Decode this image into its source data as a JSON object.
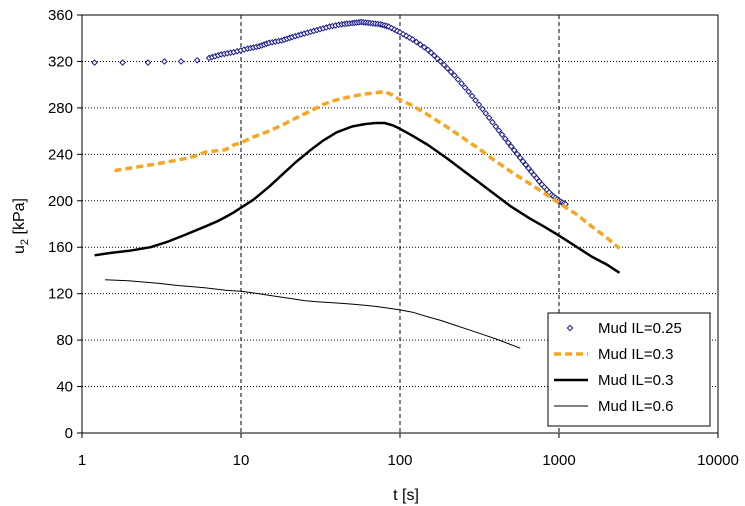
{
  "chart_data": {
    "type": "line",
    "xlabel": "t [s]",
    "ylabel_main": "u",
    "ylabel_sub": "2",
    "ylabel_tail": " [kPa]",
    "xscale": "log",
    "xlim": [
      1,
      10000
    ],
    "ylim": [
      0,
      360
    ],
    "x_ticks": [
      {
        "value": 1,
        "label": "1"
      },
      {
        "value": 10,
        "label": "10"
      },
      {
        "value": 100,
        "label": "100"
      },
      {
        "value": 1000,
        "label": "1000"
      },
      {
        "value": 10000,
        "label": "10000"
      }
    ],
    "y_ticks": [
      {
        "value": 0,
        "label": "0"
      },
      {
        "value": 40,
        "label": "40"
      },
      {
        "value": 80,
        "label": "80"
      },
      {
        "value": 120,
        "label": "120"
      },
      {
        "value": 160,
        "label": "160"
      },
      {
        "value": 200,
        "label": "200"
      },
      {
        "value": 240,
        "label": "240"
      },
      {
        "value": 280,
        "label": "280"
      },
      {
        "value": 320,
        "label": "320"
      },
      {
        "value": 360,
        "label": "360"
      }
    ],
    "grid": {
      "x_major": "dotted",
      "y_major": "dotted",
      "x_decades": "dashed"
    },
    "legend_position": "bottom-right",
    "series": [
      {
        "name": "Mud IL=0.25",
        "style": "markers",
        "marker": "diamond-open",
        "color": "#1a1a8c",
        "points": [
          [
            1.2,
            319
          ],
          [
            1.8,
            319
          ],
          [
            2.6,
            319
          ],
          [
            3.3,
            320
          ],
          [
            4.2,
            320
          ],
          [
            5.3,
            321
          ],
          [
            6.3,
            323
          ],
          [
            7.5,
            326
          ],
          [
            9,
            328
          ],
          [
            11,
            331
          ],
          [
            13,
            333
          ],
          [
            15,
            336
          ],
          [
            18,
            338
          ],
          [
            21,
            341
          ],
          [
            25,
            344
          ],
          [
            30,
            347
          ],
          [
            36,
            350
          ],
          [
            43,
            352
          ],
          [
            50,
            353
          ],
          [
            57,
            354
          ],
          [
            65,
            353
          ],
          [
            75,
            352
          ],
          [
            85,
            350
          ],
          [
            100,
            345
          ],
          [
            120,
            339
          ],
          [
            150,
            330
          ],
          [
            180,
            320
          ],
          [
            220,
            308
          ],
          [
            270,
            294
          ],
          [
            330,
            279
          ],
          [
            400,
            264
          ],
          [
            480,
            250
          ],
          [
            570,
            237
          ],
          [
            670,
            225
          ],
          [
            780,
            214
          ],
          [
            900,
            205
          ],
          [
            1000,
            200
          ],
          [
            1100,
            197
          ]
        ]
      },
      {
        "name": "Mud IL=0.3",
        "style": "dashed-line",
        "color": "#f5a623",
        "points": [
          [
            1.6,
            226
          ],
          [
            2.2,
            229
          ],
          [
            3,
            232
          ],
          [
            4,
            235
          ],
          [
            5,
            238
          ],
          [
            6,
            242
          ],
          [
            7,
            243
          ],
          [
            8,
            244
          ],
          [
            9,
            248
          ],
          [
            10,
            250
          ],
          [
            12,
            255
          ],
          [
            15,
            260
          ],
          [
            18,
            265
          ],
          [
            22,
            271
          ],
          [
            27,
            277
          ],
          [
            33,
            283
          ],
          [
            40,
            287
          ],
          [
            50,
            290
          ],
          [
            60,
            292
          ],
          [
            70,
            293
          ],
          [
            80,
            294
          ],
          [
            90,
            291
          ],
          [
            100,
            287
          ],
          [
            120,
            282
          ],
          [
            150,
            274
          ],
          [
            200,
            263
          ],
          [
            250,
            254
          ],
          [
            320,
            244
          ],
          [
            400,
            234
          ],
          [
            500,
            225
          ],
          [
            650,
            215
          ],
          [
            800,
            207
          ],
          [
            1000,
            198
          ],
          [
            1300,
            188
          ],
          [
            1600,
            178
          ],
          [
            2000,
            168
          ],
          [
            2400,
            159
          ]
        ]
      },
      {
        "name": "Mud IL=0.3",
        "style": "thick-line",
        "color": "#000000",
        "points": [
          [
            1.2,
            153
          ],
          [
            1.5,
            155
          ],
          [
            2,
            157
          ],
          [
            2.7,
            160
          ],
          [
            3.5,
            165
          ],
          [
            4.5,
            171
          ],
          [
            6,
            178
          ],
          [
            7,
            182
          ],
          [
            8,
            186
          ],
          [
            9,
            190
          ],
          [
            10,
            194
          ],
          [
            12,
            201
          ],
          [
            15,
            212
          ],
          [
            18,
            222
          ],
          [
            22,
            233
          ],
          [
            27,
            243
          ],
          [
            33,
            252
          ],
          [
            40,
            259
          ],
          [
            50,
            264
          ],
          [
            60,
            266
          ],
          [
            70,
            267
          ],
          [
            80,
            267
          ],
          [
            90,
            265
          ],
          [
            100,
            262
          ],
          [
            120,
            256
          ],
          [
            150,
            248
          ],
          [
            200,
            236
          ],
          [
            250,
            226
          ],
          [
            320,
            215
          ],
          [
            400,
            205
          ],
          [
            500,
            195
          ],
          [
            650,
            185
          ],
          [
            800,
            178
          ],
          [
            1000,
            170
          ],
          [
            1300,
            160
          ],
          [
            1600,
            152
          ],
          [
            2000,
            145
          ],
          [
            2400,
            138
          ]
        ]
      },
      {
        "name": "Mud IL=0.6",
        "style": "thin-line",
        "color": "#000000",
        "points": [
          [
            1.4,
            132
          ],
          [
            2,
            131
          ],
          [
            3,
            129
          ],
          [
            4,
            127
          ],
          [
            5,
            126
          ],
          [
            6,
            125
          ],
          [
            8,
            123
          ],
          [
            10,
            122
          ],
          [
            13,
            120
          ],
          [
            16,
            118
          ],
          [
            20,
            116
          ],
          [
            25,
            114
          ],
          [
            30,
            113
          ],
          [
            40,
            112
          ],
          [
            50,
            111
          ],
          [
            60,
            110
          ],
          [
            70,
            109
          ],
          [
            80,
            108
          ],
          [
            100,
            106
          ],
          [
            120,
            104
          ],
          [
            150,
            100
          ],
          [
            180,
            97
          ],
          [
            220,
            93
          ],
          [
            270,
            89
          ],
          [
            330,
            85
          ],
          [
            400,
            81
          ],
          [
            480,
            77
          ],
          [
            570,
            73
          ]
        ]
      }
    ]
  }
}
